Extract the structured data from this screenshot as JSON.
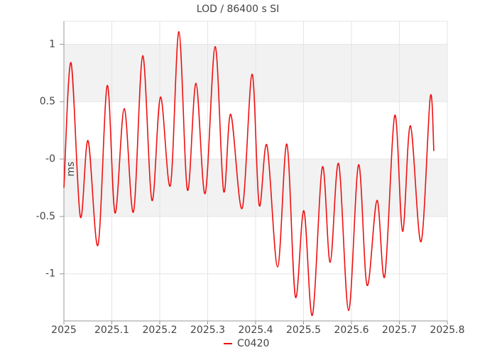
{
  "chart_data": {
    "type": "line",
    "title": "LOD / 86400 s SI",
    "y_label": "ms",
    "x": [
      2025.0,
      2025.0148,
      2025.0341,
      2025.0504,
      2025.0711,
      2025.0904,
      2025.1067,
      2025.1259,
      2025.1452,
      2025.1644,
      2025.1837,
      2025.2015,
      2025.2222,
      2025.24,
      2025.2578,
      2025.2756,
      2025.2948,
      2025.3156,
      2025.3333,
      2025.3481,
      2025.3719,
      2025.3926,
      2025.4074,
      2025.4237,
      2025.4459,
      2025.4652,
      2025.483,
      2025.5007,
      2025.5185,
      2025.5393,
      2025.5556,
      2025.5733,
      2025.5941,
      2025.6148,
      2025.6326,
      2025.6533,
      2025.6696,
      2025.6904,
      2025.7067,
      2025.723,
      2025.7452,
      2025.7644,
      2025.7719
    ],
    "series": [
      {
        "name": "C0420",
        "color": "#ee1111",
        "values": [
          -0.25,
          0.84,
          -0.5,
          0.16,
          -0.75,
          0.64,
          -0.47,
          0.44,
          -0.46,
          0.9,
          -0.36,
          0.54,
          -0.23,
          1.11,
          -0.27,
          0.66,
          -0.3,
          0.98,
          -0.28,
          0.39,
          -0.43,
          0.74,
          -0.4,
          0.12,
          -0.94,
          0.13,
          -1.2,
          -0.45,
          -1.36,
          -0.07,
          -0.9,
          -0.04,
          -1.32,
          -0.05,
          -1.1,
          -0.36,
          -1.02,
          0.38,
          -0.63,
          0.29,
          -0.72,
          0.54,
          0.07
        ]
      }
    ],
    "xlim": [
      2025,
      2025.8
    ],
    "xticks": [
      2025,
      2025.1,
      2025.2,
      2025.3,
      2025.4,
      2025.5,
      2025.6,
      2025.7,
      2025.8
    ],
    "ylim": [
      -1.41,
      1.2
    ],
    "yticks": [
      -1,
      -0.5,
      {
        "value": 0,
        "label": "-0"
      },
      0.5,
      1
    ],
    "grid": true,
    "alternating_bands": true,
    "legend": "bottom"
  }
}
